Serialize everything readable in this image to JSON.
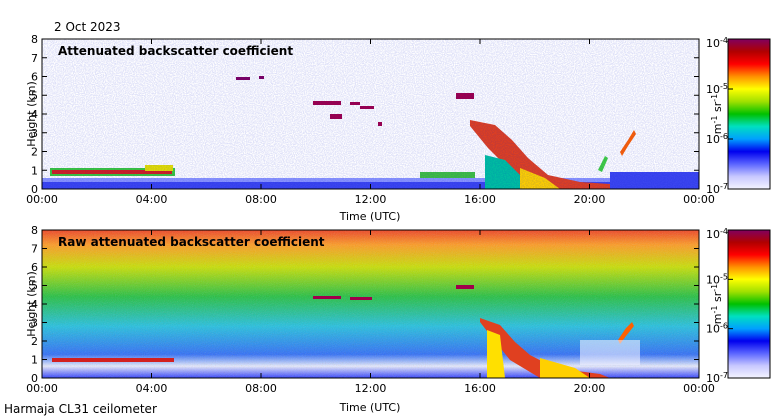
{
  "header": {
    "date": "2 Oct 2023"
  },
  "footer": {
    "instrument": "Harmaja CL31 ceilometer"
  },
  "colors": {
    "colorbar_stops": [
      "#f4f4ff",
      "#c8c8ff",
      "#5a64ff",
      "#0000ee",
      "#00a0ff",
      "#00e0c0",
      "#00c000",
      "#a0e000",
      "#ffff00",
      "#ff9000",
      "#ff0000",
      "#b00000",
      "#800060"
    ]
  },
  "chart_data": [
    {
      "type": "heatmap",
      "title": "Attenuated backscatter coefficient",
      "xlabel": "Time (UTC)",
      "ylabel": "Height (km)",
      "xticks": [
        "00:00",
        "04:00",
        "08:00",
        "12:00",
        "16:00",
        "20:00",
        "00:00"
      ],
      "xlim_hours": [
        0,
        24
      ],
      "ylim": [
        0,
        8
      ],
      "yticks": [
        "0",
        "1",
        "2",
        "3",
        "4",
        "5",
        "6",
        "7",
        "8"
      ],
      "colorbar": {
        "unit_main": "m",
        "unit_exp1": "-1",
        "unit_mid": " sr",
        "unit_exp2": "-1",
        "scale": "log",
        "range": [
          1e-07,
          0.0001
        ],
        "ticks": [
          {
            "base": "10",
            "exp": "-4"
          },
          {
            "base": "10",
            "exp": "-5"
          },
          {
            "base": "10",
            "exp": "-6"
          },
          {
            "base": "10",
            "exp": "-7"
          }
        ]
      }
    },
    {
      "type": "heatmap",
      "title": "Raw attenuated backscatter coefficient",
      "xlabel": "Time (UTC)",
      "ylabel": "Height (km)",
      "xticks": [
        "00:00",
        "04:00",
        "08:00",
        "12:00",
        "16:00",
        "20:00",
        "00:00"
      ],
      "xlim_hours": [
        0,
        24
      ],
      "ylim": [
        0,
        8
      ],
      "yticks": [
        "0",
        "1",
        "2",
        "3",
        "4",
        "5",
        "6",
        "7",
        "8"
      ],
      "colorbar": {
        "unit_main": "m",
        "unit_exp1": "-1",
        "unit_mid": " sr",
        "unit_exp2": "-1",
        "scale": "log",
        "range": [
          1e-07,
          0.0001
        ],
        "ticks": [
          {
            "base": "10",
            "exp": "-4"
          },
          {
            "base": "10",
            "exp": "-5"
          },
          {
            "base": "10",
            "exp": "-6"
          },
          {
            "base": "10",
            "exp": "-7"
          }
        ]
      }
    }
  ]
}
